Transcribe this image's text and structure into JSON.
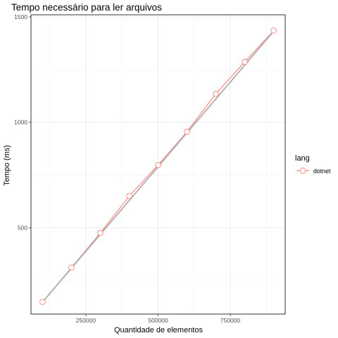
{
  "chart_data": {
    "type": "line",
    "title": "Tempo necessário para ler arquivos",
    "xlabel": "Quantidade de elementos",
    "ylabel": "Tempo (ms)",
    "xlim": [
      60000,
      940000
    ],
    "ylim": [
      90,
      1510
    ],
    "x_ticks": [
      250000,
      500000,
      750000
    ],
    "x_tick_labels": [
      "250000",
      "500000",
      "750000"
    ],
    "y_ticks": [
      500,
      1000,
      1500
    ],
    "y_tick_labels": [
      "500",
      "1000",
      "1500"
    ],
    "grid": true,
    "legend": {
      "title": "lang",
      "position": "right"
    },
    "series": [
      {
        "name": "dotnet",
        "color": "#f8766d",
        "x": [
          100000,
          200000,
          300000,
          400000,
          500000,
          600000,
          700000,
          800000,
          900000
        ],
        "y": [
          147,
          311,
          475,
          650,
          797,
          955,
          1135,
          1287,
          1435
        ]
      }
    ],
    "trend_line": {
      "color": "#b3b3b3",
      "x": [
        100000,
        900000
      ],
      "y": [
        147,
        1432
      ]
    }
  }
}
